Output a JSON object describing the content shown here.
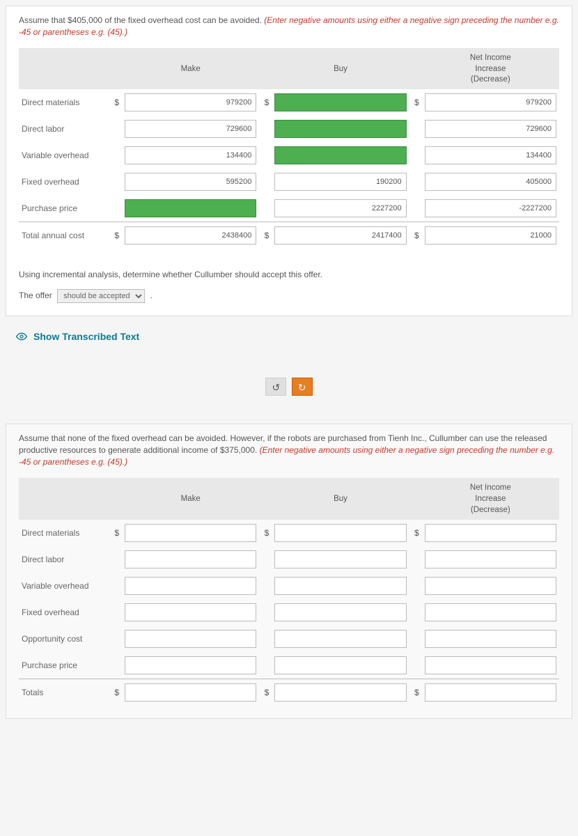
{
  "panel1": {
    "instruction_black": "Assume that $405,000 of the fixed overhead cost can be avoided. ",
    "instruction_red": "(Enter negative amounts using either a negative sign preceding the number e.g. -45 or parentheses e.g. (45).)",
    "headers": {
      "make": "Make",
      "buy": "Buy",
      "net": "Net Income\nIncrease\n(Decrease)"
    },
    "rows": [
      {
        "label": "Direct materials",
        "d1": "$",
        "make": "979200",
        "make_green": false,
        "d2": "$",
        "buy": "",
        "buy_green": true,
        "d3": "$",
        "net": "979200",
        "net_green": false
      },
      {
        "label": "Direct labor",
        "d1": "",
        "make": "729600",
        "make_green": false,
        "d2": "",
        "buy": "",
        "buy_green": true,
        "d3": "",
        "net": "729600",
        "net_green": false
      },
      {
        "label": "Variable overhead",
        "d1": "",
        "make": "134400",
        "make_green": false,
        "d2": "",
        "buy": "",
        "buy_green": true,
        "d3": "",
        "net": "134400",
        "net_green": false
      },
      {
        "label": "Fixed overhead",
        "d1": "",
        "make": "595200",
        "make_green": false,
        "d2": "",
        "buy": "190200",
        "buy_green": false,
        "d3": "",
        "net": "405000",
        "net_green": false
      },
      {
        "label": "Purchase price",
        "d1": "",
        "make": "",
        "make_green": true,
        "d2": "",
        "buy": "2227200",
        "buy_green": false,
        "d3": "",
        "net": "-2227200",
        "net_green": false
      },
      {
        "label": "Total annual cost",
        "d1": "$",
        "make": "2438400",
        "make_green": false,
        "d2": "$",
        "buy": "2417400",
        "buy_green": false,
        "d3": "$",
        "net": "21000",
        "net_green": false,
        "total": true
      }
    ],
    "analysis": "Using incremental analysis, determine whether Cullumber should accept this offer.",
    "offer_prefix": "The offer",
    "offer_select": "should be accepted",
    "offer_suffix": "."
  },
  "show_link": "Show Transcribed Text",
  "nav": {
    "prev": "↺",
    "next": "↻"
  },
  "panel2": {
    "instruction_black": "Assume that none of the fixed overhead can be avoided. However, if the robots are purchased from Tienh Inc., Cullumber can use the released productive resources to generate additional income of $375,000. ",
    "instruction_red": "(Enter negative amounts using either a negative sign preceding the number e.g. -45 or parentheses e.g. (45).)",
    "headers": {
      "make": "Make",
      "buy": "Buy",
      "net": "Net Income\nIncrease\n(Decrease)"
    },
    "rows": [
      {
        "label": "Direct materials",
        "d1": "$",
        "d2": "$",
        "d3": "$"
      },
      {
        "label": "Direct labor",
        "d1": "",
        "d2": "",
        "d3": ""
      },
      {
        "label": "Variable overhead",
        "d1": "",
        "d2": "",
        "d3": ""
      },
      {
        "label": "Fixed overhead",
        "d1": "",
        "d2": "",
        "d3": ""
      },
      {
        "label": "Opportunity cost",
        "d1": "",
        "d2": "",
        "d3": ""
      },
      {
        "label": "Purchase price",
        "d1": "",
        "d2": "",
        "d3": ""
      },
      {
        "label": "Totals",
        "d1": "$",
        "d2": "$",
        "d3": "$",
        "total": true
      }
    ]
  }
}
